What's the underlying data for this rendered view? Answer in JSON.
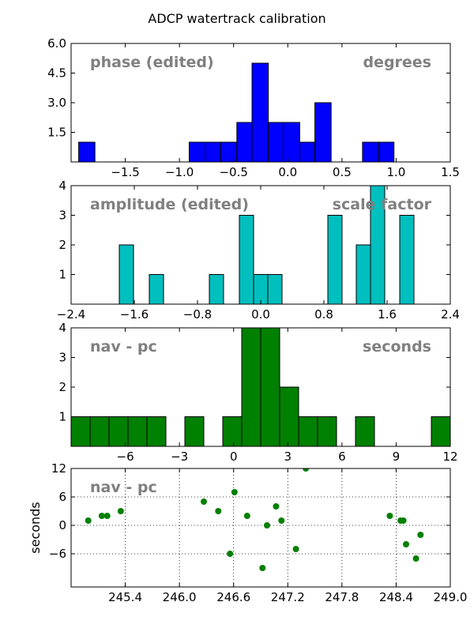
{
  "title": "ADCP watertrack calibration",
  "chart_data": [
    {
      "type": "bar",
      "name": "phase",
      "overlay_left": "phase (edited)",
      "overlay_right": "degrees",
      "color": "#0000ff",
      "xlim": [
        -2.0,
        1.5
      ],
      "ylim": [
        0,
        6.0
      ],
      "xticks": [
        -1.5,
        -1.0,
        -0.5,
        0.0,
        0.5,
        1.0,
        1.5
      ],
      "xtick_labels": [
        "−1.5",
        "−1.0",
        "−0.5",
        "0.0",
        "0.5",
        "1.0",
        "1.5"
      ],
      "yticks": [
        1.5,
        3.0,
        4.5,
        6.0
      ],
      "ytick_labels": [
        "1.5",
        "3.0",
        "4.5",
        "6.0"
      ],
      "bins": [
        {
          "x0": -1.93,
          "x1": -1.78,
          "count": 1
        },
        {
          "x0": -0.91,
          "x1": -0.76,
          "count": 1
        },
        {
          "x0": -0.76,
          "x1": -0.62,
          "count": 1
        },
        {
          "x0": -0.62,
          "x1": -0.47,
          "count": 1
        },
        {
          "x0": -0.47,
          "x1": -0.33,
          "count": 2
        },
        {
          "x0": -0.33,
          "x1": -0.18,
          "count": 5
        },
        {
          "x0": -0.18,
          "x1": -0.04,
          "count": 2
        },
        {
          "x0": -0.04,
          "x1": 0.11,
          "count": 2
        },
        {
          "x0": 0.11,
          "x1": 0.25,
          "count": 1
        },
        {
          "x0": 0.25,
          "x1": 0.4,
          "count": 3
        },
        {
          "x0": 0.69,
          "x1": 0.84,
          "count": 1
        },
        {
          "x0": 0.84,
          "x1": 0.98,
          "count": 1
        }
      ]
    },
    {
      "type": "bar",
      "name": "amplitude",
      "overlay_left": "amplitude (edited)",
      "overlay_right": "scale factor",
      "color": "#00bfbf",
      "xlim": [
        -2.4,
        2.4
      ],
      "ylim": [
        0,
        4
      ],
      "xticks": [
        -2.4,
        -1.6,
        -0.8,
        0.0,
        0.8,
        1.6,
        2.4
      ],
      "xtick_labels": [
        "−2.4",
        "−1.6",
        "−0.8",
        "0.0",
        "0.8",
        "1.6",
        "2.4"
      ],
      "yticks": [
        1,
        2,
        3,
        4
      ],
      "ytick_labels": [
        "1",
        "2",
        "3",
        "4"
      ],
      "bins": [
        {
          "x0": -1.79,
          "x1": -1.61,
          "count": 2
        },
        {
          "x0": -1.41,
          "x1": -1.23,
          "count": 1
        },
        {
          "x0": -0.65,
          "x1": -0.47,
          "count": 1
        },
        {
          "x0": -0.27,
          "x1": -0.09,
          "count": 3
        },
        {
          "x0": -0.09,
          "x1": 0.09,
          "count": 1
        },
        {
          "x0": 0.09,
          "x1": 0.27,
          "count": 1
        },
        {
          "x0": 0.85,
          "x1": 1.03,
          "count": 3
        },
        {
          "x0": 1.21,
          "x1": 1.39,
          "count": 2
        },
        {
          "x0": 1.39,
          "x1": 1.57,
          "count": 4
        },
        {
          "x0": 1.76,
          "x1": 1.94,
          "count": 3
        }
      ]
    },
    {
      "type": "bar",
      "name": "nav-hist",
      "overlay_left": "nav - pc",
      "overlay_right": "seconds",
      "color": "#008000",
      "xlim": [
        -9,
        12
      ],
      "ylim": [
        0,
        4
      ],
      "xticks": [
        -6,
        -3,
        0,
        3,
        6,
        9,
        12
      ],
      "xtick_labels": [
        "−6",
        "−3",
        "0",
        "3",
        "6",
        "9",
        "12"
      ],
      "yticks": [
        1,
        2,
        3,
        4
      ],
      "ytick_labels": [
        "1",
        "2",
        "3",
        "4"
      ],
      "bins": [
        {
          "x0": -9.0,
          "x1": -7.95,
          "count": 1
        },
        {
          "x0": -7.95,
          "x1": -6.9,
          "count": 1
        },
        {
          "x0": -6.9,
          "x1": -5.85,
          "count": 1
        },
        {
          "x0": -5.85,
          "x1": -4.8,
          "count": 1
        },
        {
          "x0": -4.8,
          "x1": -3.75,
          "count": 1
        },
        {
          "x0": -2.7,
          "x1": -1.65,
          "count": 1
        },
        {
          "x0": -0.6,
          "x1": 0.45,
          "count": 1
        },
        {
          "x0": 0.45,
          "x1": 1.5,
          "count": 4
        },
        {
          "x0": 1.5,
          "x1": 2.55,
          "count": 4
        },
        {
          "x0": 2.55,
          "x1": 3.6,
          "count": 2
        },
        {
          "x0": 3.6,
          "x1": 4.65,
          "count": 1
        },
        {
          "x0": 4.65,
          "x1": 5.7,
          "count": 1
        },
        {
          "x0": 6.75,
          "x1": 7.8,
          "count": 1
        },
        {
          "x0": 10.95,
          "x1": 12.0,
          "count": 1
        }
      ]
    },
    {
      "type": "scatter",
      "name": "nav-scatter",
      "overlay_left": "nav - pc",
      "ylabel": "seconds",
      "color": "#008000",
      "grid": true,
      "xlim": [
        244.8,
        249.0
      ],
      "ylim": [
        -13,
        12
      ],
      "xticks": [
        245.4,
        246.0,
        246.6,
        247.2,
        247.8,
        248.4,
        249.0
      ],
      "xtick_labels": [
        "245.4",
        "246.0",
        "246.6",
        "247.2",
        "247.8",
        "248.4",
        "249.0"
      ],
      "yticks": [
        -6,
        0,
        6,
        12
      ],
      "ytick_labels": [
        "−6",
        "0",
        "6",
        "12"
      ],
      "points": [
        {
          "x": 244.99,
          "y": 1
        },
        {
          "x": 245.14,
          "y": 2
        },
        {
          "x": 245.2,
          "y": 2
        },
        {
          "x": 245.35,
          "y": 3
        },
        {
          "x": 246.27,
          "y": 5
        },
        {
          "x": 246.43,
          "y": 3
        },
        {
          "x": 246.56,
          "y": -6
        },
        {
          "x": 246.61,
          "y": 7
        },
        {
          "x": 246.75,
          "y": 2
        },
        {
          "x": 246.92,
          "y": -9
        },
        {
          "x": 246.97,
          "y": 0
        },
        {
          "x": 247.07,
          "y": 4
        },
        {
          "x": 247.13,
          "y": 1
        },
        {
          "x": 247.29,
          "y": -5
        },
        {
          "x": 247.4,
          "y": 12
        },
        {
          "x": 248.33,
          "y": 2
        },
        {
          "x": 248.45,
          "y": 1
        },
        {
          "x": 248.48,
          "y": 1
        },
        {
          "x": 248.51,
          "y": -4
        },
        {
          "x": 248.62,
          "y": -7
        },
        {
          "x": 248.67,
          "y": -2
        }
      ]
    }
  ]
}
